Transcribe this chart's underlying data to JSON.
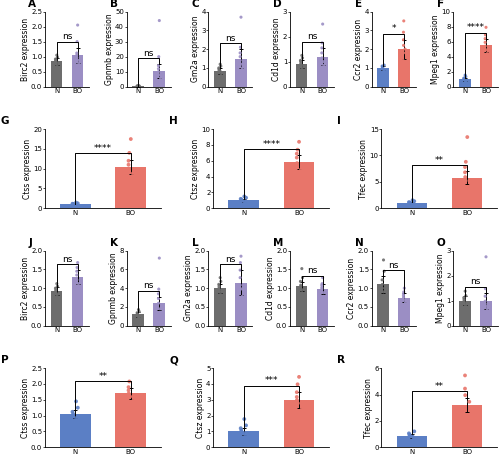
{
  "panels": [
    {
      "label": "A",
      "gene": "Birc2",
      "ylabel": "Birc2 expression",
      "sig": "ns",
      "N_mean": 0.85,
      "N_sem": 0.12,
      "BO_mean": 1.05,
      "BO_sem": 0.25,
      "ylim": [
        0,
        2.5
      ],
      "yticks": [
        0,
        0.5,
        1.0,
        1.5,
        2.0,
        2.5
      ],
      "N_color": "#6d6d6d",
      "BO_color": "#9b8ec4",
      "N_dots": [
        0.55,
        0.65,
        0.72,
        0.8,
        0.85,
        0.88,
        0.92,
        0.98,
        1.05
      ],
      "BO_dots": [
        0.45,
        0.62,
        0.78,
        0.88,
        0.98,
        1.05,
        1.12,
        1.5,
        2.05
      ]
    },
    {
      "label": "B",
      "gene": "Gpnmb",
      "ylabel": "Gpnmb expression",
      "sig": "ns",
      "N_mean": 0.4,
      "N_sem": 0.25,
      "BO_mean": 10.5,
      "BO_sem": 4.5,
      "ylim": [
        0,
        50
      ],
      "yticks": [
        0,
        10,
        20,
        30,
        40,
        50
      ],
      "N_color": "#6d6d6d",
      "BO_color": "#9b8ec4",
      "N_dots": [
        0.05,
        0.1,
        0.15,
        0.2,
        0.3,
        0.4,
        0.5,
        0.6,
        0.7
      ],
      "BO_dots": [
        2,
        4,
        6,
        8,
        10,
        12,
        14,
        20,
        44
      ]
    },
    {
      "label": "C",
      "gene": "Gm2a",
      "ylabel": "Gm2a expression",
      "sig": "ns",
      "N_mean": 0.85,
      "N_sem": 0.15,
      "BO_mean": 1.5,
      "BO_sem": 0.5,
      "ylim": [
        0,
        4
      ],
      "yticks": [
        0,
        1,
        2,
        3,
        4
      ],
      "N_color": "#6d6d6d",
      "BO_color": "#9b8ec4",
      "N_dots": [
        0.45,
        0.6,
        0.72,
        0.82,
        0.88,
        0.95,
        1.0,
        1.1,
        1.2
      ],
      "BO_dots": [
        0.6,
        0.85,
        1.0,
        1.2,
        1.4,
        1.6,
        1.8,
        2.1,
        3.7
      ]
    },
    {
      "label": "D",
      "gene": "Cd1d",
      "ylabel": "Cd1d expression",
      "sig": "ns",
      "N_mean": 0.9,
      "N_sem": 0.15,
      "BO_mean": 1.2,
      "BO_sem": 0.35,
      "ylim": [
        0,
        3
      ],
      "yticks": [
        0,
        1,
        2,
        3
      ],
      "N_color": "#6d6d6d",
      "BO_color": "#9b8ec4",
      "N_dots": [
        0.45,
        0.6,
        0.75,
        0.85,
        0.92,
        1.0,
        1.05,
        1.15,
        1.25
      ],
      "BO_dots": [
        0.35,
        0.55,
        0.85,
        1.0,
        1.15,
        1.35,
        1.55,
        1.75,
        2.5
      ]
    },
    {
      "label": "E",
      "gene": "Ccr2",
      "ylabel": "Ccr2 expression",
      "sig": "*",
      "N_mean": 1.0,
      "N_sem": 0.1,
      "BO_mean": 2.0,
      "BO_sem": 0.5,
      "ylim": [
        0,
        4
      ],
      "yticks": [
        0,
        1,
        2,
        3,
        4
      ],
      "N_color": "#5b7fc5",
      "BO_color": "#e8756a",
      "N_dots": [
        0.78,
        0.85,
        0.9,
        0.95,
        1.0,
        1.05,
        1.1,
        1.15
      ],
      "BO_dots": [
        0.5,
        0.9,
        1.4,
        1.8,
        2.0,
        2.2,
        2.5,
        2.9,
        3.5
      ]
    },
    {
      "label": "F",
      "gene": "Mpeg1",
      "ylabel": "Mpeg1 expression",
      "sig": "****",
      "N_mean": 1.0,
      "N_sem": 0.2,
      "BO_mean": 5.5,
      "BO_sem": 0.9,
      "ylim": [
        0,
        10
      ],
      "yticks": [
        0,
        2,
        4,
        6,
        8,
        10
      ],
      "N_color": "#5b7fc5",
      "BO_color": "#e8756a",
      "N_dots": [
        0.45,
        0.65,
        0.78,
        0.88,
        0.98,
        1.05,
        1.15,
        1.35,
        1.55
      ],
      "BO_dots": [
        2.8,
        3.8,
        4.4,
        4.9,
        5.4,
        5.9,
        6.4,
        6.9,
        7.9
      ]
    },
    {
      "label": "G",
      "gene": "Ctss",
      "ylabel": "Ctss expression",
      "sig": "****",
      "N_mean": 1.0,
      "N_sem": 0.15,
      "BO_mean": 10.5,
      "BO_sem": 1.8,
      "ylim": [
        0,
        20
      ],
      "yticks": [
        0,
        5,
        10,
        15,
        20
      ],
      "N_color": "#5b7fc5",
      "BO_color": "#e8756a",
      "N_dots": [
        0.45,
        0.6,
        0.75,
        0.88,
        0.95,
        1.05,
        1.12,
        1.22,
        1.42
      ],
      "BO_dots": [
        4.5,
        6.5,
        7.8,
        8.8,
        10.0,
        11.0,
        12.0,
        14.0,
        17.5
      ]
    },
    {
      "label": "H",
      "gene": "Ctsz",
      "ylabel": "Ctsz expression",
      "sig": "****",
      "N_mean": 1.0,
      "N_sem": 0.2,
      "BO_mean": 5.8,
      "BO_sem": 0.9,
      "ylim": [
        0,
        10
      ],
      "yticks": [
        0,
        2,
        4,
        6,
        8,
        10
      ],
      "N_color": "#5b7fc5",
      "BO_color": "#e8756a",
      "N_dots": [
        0.45,
        0.62,
        0.78,
        0.88,
        0.98,
        1.08,
        1.18,
        1.32,
        1.48
      ],
      "BO_dots": [
        1.8,
        3.2,
        4.2,
        4.9,
        5.7,
        6.4,
        6.9,
        7.4,
        8.4
      ]
    },
    {
      "label": "I",
      "gene": "Tfec",
      "ylabel": "Tfec expression",
      "sig": "**",
      "N_mean": 1.0,
      "N_sem": 0.2,
      "BO_mean": 5.8,
      "BO_sem": 1.2,
      "ylim": [
        0,
        15
      ],
      "yticks": [
        0,
        5,
        10,
        15
      ],
      "N_color": "#5b7fc5",
      "BO_color": "#e8756a",
      "N_dots": [
        0.45,
        0.58,
        0.72,
        0.85,
        0.95,
        1.05,
        1.15,
        1.32,
        1.5
      ],
      "BO_dots": [
        0.9,
        2.8,
        4.2,
        5.2,
        5.9,
        6.8,
        7.8,
        8.8,
        13.5
      ]
    },
    {
      "label": "J",
      "gene": "Birc2",
      "ylabel": "Birc2 expression",
      "sig": "ns",
      "N_mean": 0.92,
      "N_sem": 0.1,
      "BO_mean": 1.3,
      "BO_sem": 0.18,
      "ylim": [
        0,
        2.0
      ],
      "yticks": [
        0,
        0.5,
        1.0,
        1.5,
        2.0
      ],
      "N_color": "#6d6d6d",
      "BO_color": "#9b8ec4",
      "N_dots": [
        0.62,
        0.72,
        0.8,
        0.85,
        0.9,
        0.95,
        1.0,
        1.05,
        1.12
      ],
      "BO_dots": [
        0.82,
        0.92,
        1.05,
        1.12,
        1.22,
        1.35,
        1.45,
        1.55,
        1.68
      ]
    },
    {
      "label": "K",
      "gene": "Gpnmb",
      "ylabel": "Gpnmb expression",
      "sig": "ns",
      "N_mean": 1.2,
      "N_sem": 0.25,
      "BO_mean": 2.4,
      "BO_sem": 0.7,
      "ylim": [
        0,
        8
      ],
      "yticks": [
        0,
        2,
        4,
        6,
        8
      ],
      "N_color": "#6d6d6d",
      "BO_color": "#9b8ec4",
      "N_dots": [
        0.72,
        0.85,
        0.92,
        1.02,
        1.12,
        1.25,
        1.38,
        1.52,
        1.72
      ],
      "BO_dots": [
        0.5,
        0.85,
        1.2,
        1.8,
        2.4,
        2.9,
        3.4,
        3.9,
        7.2
      ]
    },
    {
      "label": "L",
      "gene": "Gm2a",
      "ylabel": "Gm2a expression",
      "sig": "ns",
      "N_mean": 1.0,
      "N_sem": 0.12,
      "BO_mean": 1.15,
      "BO_sem": 0.32,
      "ylim": [
        0,
        2.0
      ],
      "yticks": [
        0,
        0.5,
        1.0,
        1.5,
        2.0
      ],
      "N_color": "#6d6d6d",
      "BO_color": "#9b8ec4",
      "N_dots": [
        0.68,
        0.78,
        0.88,
        0.94,
        1.0,
        1.05,
        1.1,
        1.18,
        1.28
      ],
      "BO_dots": [
        0.38,
        0.58,
        0.78,
        0.98,
        1.08,
        1.28,
        1.48,
        1.68,
        1.85
      ]
    },
    {
      "label": "M",
      "gene": "Cd1d",
      "ylabel": "Cd1d expression",
      "sig": "ns",
      "N_mean": 1.05,
      "N_sem": 0.12,
      "BO_mean": 0.98,
      "BO_sem": 0.14,
      "ylim": [
        0,
        2.0
      ],
      "yticks": [
        0,
        0.5,
        1.0,
        1.5,
        2.0
      ],
      "N_color": "#6d6d6d",
      "BO_color": "#9b8ec4",
      "N_dots": [
        0.68,
        0.78,
        0.88,
        0.96,
        1.04,
        1.08,
        1.18,
        1.28,
        1.52
      ],
      "BO_dots": [
        0.52,
        0.68,
        0.78,
        0.88,
        0.98,
        1.02,
        1.08,
        1.12,
        1.28
      ]
    },
    {
      "label": "N",
      "gene": "Ccr2",
      "ylabel": "Ccr2 expression",
      "sig": "ns",
      "N_mean": 1.1,
      "N_sem": 0.22,
      "BO_mean": 0.75,
      "BO_sem": 0.12,
      "ylim": [
        0,
        2.0
      ],
      "yticks": [
        0,
        0.5,
        1.0,
        1.5,
        2.0
      ],
      "N_color": "#6d6d6d",
      "BO_color": "#9b8ec4",
      "N_dots": [
        0.6,
        0.7,
        0.8,
        0.9,
        1.0,
        1.1,
        1.22,
        1.45,
        1.75
      ],
      "BO_dots": [
        0.42,
        0.55,
        0.62,
        0.68,
        0.75,
        0.8,
        0.85,
        0.9,
        1.0
      ]
    },
    {
      "label": "O",
      "gene": "Mpeg1",
      "ylabel": "Mpeg1 expression",
      "sig": "ns",
      "N_mean": 1.0,
      "N_sem": 0.18,
      "BO_mean": 1.0,
      "BO_sem": 0.32,
      "ylim": [
        0,
        3
      ],
      "yticks": [
        0,
        1,
        2,
        3
      ],
      "N_color": "#6d6d6d",
      "BO_color": "#9b8ec4",
      "N_dots": [
        0.6,
        0.72,
        0.82,
        0.9,
        0.98,
        1.05,
        1.12,
        1.2,
        1.38
      ],
      "BO_dots": [
        0.28,
        0.48,
        0.68,
        0.78,
        0.88,
        0.98,
        1.18,
        1.48,
        2.75
      ]
    },
    {
      "label": "P",
      "gene": "Ctss",
      "ylabel": "Ctss expression",
      "sig": "**",
      "N_mean": 1.05,
      "N_sem": 0.12,
      "BO_mean": 1.7,
      "BO_sem": 0.18,
      "ylim": [
        0,
        2.5
      ],
      "yticks": [
        0,
        0.5,
        1.0,
        1.5,
        2.0,
        2.5
      ],
      "N_color": "#5b7fc5",
      "BO_color": "#e8756a",
      "N_dots": [
        0.65,
        0.75,
        0.85,
        0.92,
        1.0,
        1.05,
        1.12,
        1.25,
        1.45
      ],
      "BO_dots": [
        1.18,
        1.38,
        1.5,
        1.6,
        1.7,
        1.8,
        1.9,
        2.08
      ]
    },
    {
      "label": "Q",
      "gene": "Ctsz",
      "ylabel": "Ctsz expression",
      "sig": "***",
      "N_mean": 1.0,
      "N_sem": 0.2,
      "BO_mean": 3.0,
      "BO_sem": 0.5,
      "ylim": [
        0,
        5
      ],
      "yticks": [
        0,
        1,
        2,
        3,
        4,
        5
      ],
      "N_color": "#5b7fc5",
      "BO_color": "#e8756a",
      "N_dots": [
        0.45,
        0.62,
        0.78,
        0.88,
        0.98,
        1.08,
        1.2,
        1.38,
        1.78
      ],
      "BO_dots": [
        1.45,
        1.95,
        2.45,
        2.78,
        2.98,
        3.18,
        3.48,
        3.98,
        4.45
      ]
    },
    {
      "label": "R",
      "gene": "Tfec",
      "ylabel": "Tfec expression",
      "sig": "**",
      "N_mean": 0.85,
      "N_sem": 0.15,
      "BO_mean": 3.2,
      "BO_sem": 0.55,
      "ylim": [
        0,
        6
      ],
      "yticks": [
        0,
        2,
        4,
        6
      ],
      "N_color": "#5b7fc5",
      "BO_color": "#e8756a",
      "N_dots": [
        0.45,
        0.62,
        0.72,
        0.82,
        0.88,
        0.95,
        1.05,
        1.2
      ],
      "BO_dots": [
        0.95,
        1.45,
        2.45,
        2.95,
        3.45,
        3.95,
        4.45,
        5.45
      ]
    }
  ],
  "background_color": "#ffffff",
  "bar_width": 0.55,
  "dot_size": 5,
  "sig_fontsize": 6.5,
  "label_fontsize": 5.5,
  "tick_fontsize": 5.0,
  "panel_label_fontsize": 7.5
}
